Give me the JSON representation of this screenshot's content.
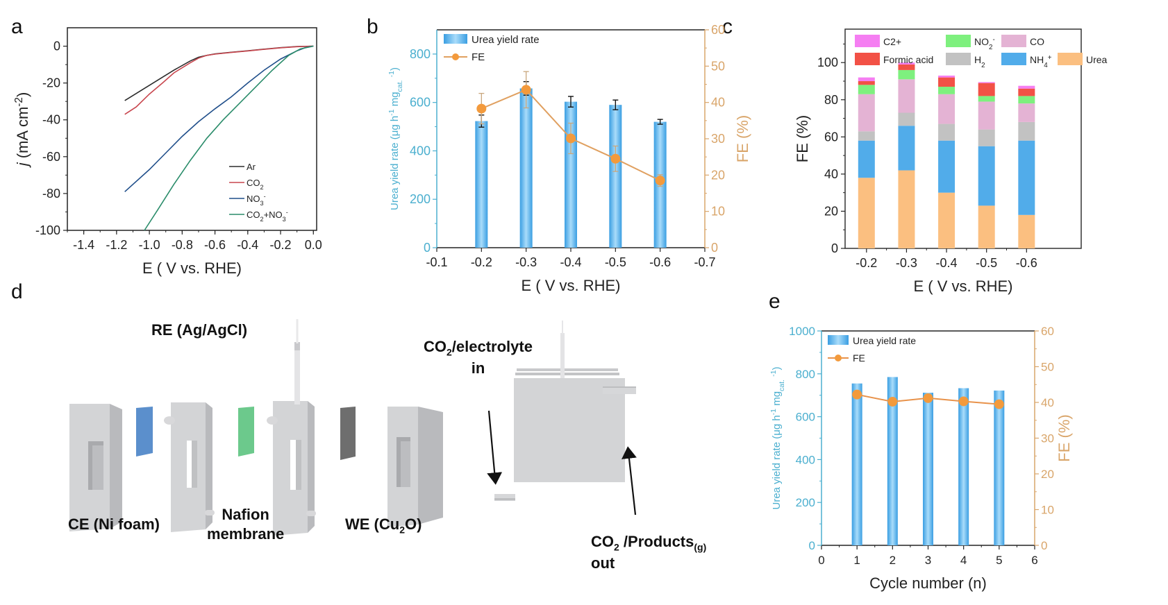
{
  "panels": {
    "a": {
      "letter": "a"
    },
    "b": {
      "letter": "b"
    },
    "c": {
      "letter": "c"
    },
    "d": {
      "letter": "d"
    },
    "e": {
      "letter": "e"
    }
  },
  "colors": {
    "ar": "#2b2b2b",
    "co2": "#c8464e",
    "no3": "#1f4e8a",
    "co2_no3": "#2a8c6a",
    "bar_blue": "#4aa8e6",
    "fe_orange": "#f39a3c",
    "left_axis_teal": "#4bafcf",
    "right_axis_tan": "#d9a56a",
    "c2plus": "#f57ef2",
    "formic": "#f25146",
    "no2": "#7ef07e",
    "h2": "#c2c2c2",
    "co": "#e4b3d4",
    "nh4": "#51acea",
    "urea": "#fbbf80"
  },
  "chart_data": [
    {
      "id": "a",
      "type": "line",
      "title": "",
      "xlabel": "E ( V vs. RHE)",
      "ylabel": "j (mA cm-2)",
      "ylabel_italic": "j",
      "ylabel_rest": " (mA cm",
      "ylabel_sup": "-2",
      "xlim": [
        -1.5,
        0.02
      ],
      "ylim": [
        -100,
        10
      ],
      "xticks": [
        -1.4,
        -1.2,
        -1.0,
        -0.8,
        -0.6,
        -0.4,
        -0.2,
        0.0
      ],
      "xtick_labels": [
        "-1.4",
        "-1.2",
        "-1.0",
        "-0.8",
        "-0.6",
        "-0.4",
        "-0.2",
        "0.0"
      ],
      "yticks": [
        0,
        -20,
        -40,
        -60,
        -80,
        -100
      ],
      "ytick_labels": [
        "0",
        "-20",
        "-40",
        "-60",
        "-80",
        "-100"
      ],
      "legend_position": "bottom-right",
      "series": [
        {
          "name": "Ar",
          "label_main": "Ar",
          "label_sub": "",
          "label_sup": "",
          "label_tail": "",
          "color_key": "ar",
          "x": [
            -1.15,
            -1.05,
            -0.95,
            -0.85,
            -0.75,
            -0.7,
            -0.65,
            -0.6,
            -0.5,
            -0.4,
            -0.3,
            -0.2,
            -0.1,
            0.0
          ],
          "y": [
            -29.5,
            -24,
            -18.5,
            -13,
            -8,
            -6,
            -5,
            -4.2,
            -3.3,
            -2.5,
            -1.6,
            -0.8,
            -0.2,
            0
          ]
        },
        {
          "name": "CO2",
          "label_main": "CO",
          "label_sub": "2",
          "label_sup": "",
          "label_tail": "",
          "color_key": "co2",
          "x": [
            -1.15,
            -1.08,
            -1.0,
            -0.92,
            -0.85,
            -0.75,
            -0.7,
            -0.65,
            -0.6,
            -0.5,
            -0.4,
            -0.3,
            -0.2,
            -0.1,
            0.0
          ],
          "y": [
            -37,
            -33,
            -26,
            -20,
            -14.5,
            -9,
            -6.5,
            -5,
            -4.3,
            -3.4,
            -2.6,
            -1.7,
            -0.9,
            -0.3,
            0
          ]
        },
        {
          "name": "NO3-",
          "label_main": "NO",
          "label_sub": "3",
          "label_sup": "-",
          "label_tail": "",
          "color_key": "no3",
          "x": [
            -1.15,
            -1.0,
            -0.9,
            -0.8,
            -0.7,
            -0.6,
            -0.5,
            -0.4,
            -0.3,
            -0.2,
            -0.1,
            -0.05,
            0.0
          ],
          "y": [
            -79,
            -67,
            -58,
            -49,
            -41,
            -34,
            -27.5,
            -20,
            -13,
            -7,
            -2.5,
            -0.8,
            0
          ]
        },
        {
          "name": "CO2+NO3-",
          "label_main": "CO",
          "label_sub": "2",
          "label_sup": "",
          "label_tail": "+NO",
          "label_tail_sub": "3",
          "label_tail_sup": "-",
          "color_key": "co2_no3",
          "x": [
            -1.03,
            -0.95,
            -0.85,
            -0.75,
            -0.65,
            -0.55,
            -0.45,
            -0.35,
            -0.25,
            -0.15,
            -0.08,
            0.0
          ],
          "y": [
            -100,
            -89,
            -75,
            -62,
            -50,
            -40,
            -31,
            -22,
            -13,
            -5,
            -1.5,
            0
          ]
        }
      ]
    },
    {
      "id": "b",
      "type": "bar",
      "xlabel": "E ( V vs. RHE)",
      "ylabel_left": "Urea yield rate (μg h",
      "ylabel_left_sup1": "-1",
      "ylabel_left_mid": " mg",
      "ylabel_left_sub": "cat.",
      "ylabel_left_sup2": "-1",
      "ylabel_left_end": ")",
      "ylabel_right": "FE (%)",
      "xlim": [
        -0.1,
        -0.7
      ],
      "ylim_left": [
        0,
        900
      ],
      "ylim_right": [
        0,
        60
      ],
      "xticks": [
        -0.1,
        -0.2,
        -0.3,
        -0.4,
        -0.5,
        -0.6,
        -0.7
      ],
      "xtick_labels": [
        "-0.1",
        "-0.2",
        "-0.3",
        "-0.4",
        "-0.5",
        "-0.6",
        "-0.7"
      ],
      "yticks_left": [
        0,
        200,
        400,
        600,
        800
      ],
      "ytick_left_labels": [
        "0",
        "200",
        "400",
        "600",
        "800"
      ],
      "yticks_right": [
        0,
        10,
        20,
        30,
        40,
        50,
        60
      ],
      "ytick_right_labels": [
        "0",
        "10",
        "20",
        "30",
        "40",
        "50",
        "60"
      ],
      "legend_position": "top-left",
      "legend": [
        "Urea yield rate",
        "FE"
      ],
      "categories": [
        -0.2,
        -0.3,
        -0.4,
        -0.5,
        -0.6
      ],
      "series": [
        {
          "name": "Urea yield rate",
          "axis": "left",
          "values": [
            523,
            658,
            603,
            590,
            520
          ],
          "errors": [
            25,
            28,
            22,
            20,
            10
          ]
        },
        {
          "name": "FE",
          "axis": "right",
          "values": [
            38.3,
            43.5,
            30.1,
            24.5,
            18.5
          ],
          "errors": [
            4.2,
            5.0,
            4.2,
            3.5,
            1.6
          ]
        }
      ]
    },
    {
      "id": "c",
      "type": "bar",
      "stacked": true,
      "xlabel": "E ( V vs. RHE)",
      "ylabel": "FE (%)",
      "ylim": [
        0,
        118
      ],
      "yticks": [
        0,
        20,
        40,
        60,
        80,
        100
      ],
      "ytick_labels": [
        "0",
        "20",
        "40",
        "60",
        "80",
        "100"
      ],
      "xtick_labels": [
        "-0.2",
        "-0.3",
        "-0.4",
        "-0.5",
        "-0.6"
      ],
      "categories": [
        "-0.2",
        "-0.3",
        "-0.4",
        "-0.5",
        "-0.6"
      ],
      "legend_position": "top",
      "series": [
        {
          "name": "Urea",
          "label_main": "Urea",
          "label_sub": "",
          "label_sup": "",
          "color_key": "urea",
          "values": [
            38,
            42,
            30,
            23,
            18
          ]
        },
        {
          "name": "NH4+",
          "label_main": "NH",
          "label_sub": "4",
          "label_sup": "+",
          "color_key": "nh4",
          "values": [
            20,
            24,
            28,
            32,
            40
          ]
        },
        {
          "name": "H2",
          "label_main": "H",
          "label_sub": "2",
          "label_sup": "",
          "color_key": "h2",
          "values": [
            5,
            7,
            9,
            9,
            10
          ]
        },
        {
          "name": "CO",
          "label_main": "CO",
          "label_sub": "",
          "label_sup": "",
          "color_key": "co",
          "values": [
            20,
            18,
            16,
            15,
            10
          ]
        },
        {
          "name": "NO2-",
          "label_main": "NO",
          "label_sub": "2",
          "label_sup": "-",
          "color_key": "no2",
          "values": [
            5,
            5,
            4,
            3,
            4
          ]
        },
        {
          "name": "Formic acid",
          "label_main": "Formic acid",
          "label_sub": "",
          "label_sup": "",
          "color_key": "formic",
          "values": [
            2,
            3,
            5,
            7,
            4
          ]
        },
        {
          "name": "C2+",
          "label_main": "C2+",
          "label_sub": "",
          "label_sup": "",
          "color_key": "c2plus",
          "values": [
            2,
            1,
            1,
            0.5,
            1.5
          ]
        }
      ]
    },
    {
      "id": "e",
      "type": "bar",
      "xlabel": "Cycle number (n)",
      "ylabel_left": "Urea yield rate (μg h",
      "ylabel_left_sup1": "-1",
      "ylabel_left_mid": " mg",
      "ylabel_left_sub": "cat.",
      "ylabel_left_sup2": "-1",
      "ylabel_left_end": ")",
      "ylabel_right": "FE (%)",
      "xlim": [
        0,
        6
      ],
      "ylim_left": [
        0,
        1000
      ],
      "ylim_right": [
        0,
        60
      ],
      "xticks": [
        0,
        1,
        2,
        3,
        4,
        5,
        6
      ],
      "xtick_labels": [
        "0",
        "1",
        "2",
        "3",
        "4",
        "5",
        "6"
      ],
      "yticks_left": [
        0,
        200,
        400,
        600,
        800,
        1000
      ],
      "ytick_left_labels": [
        "0",
        "200",
        "400",
        "600",
        "800",
        "1000"
      ],
      "yticks_right": [
        0,
        10,
        20,
        30,
        40,
        50,
        60
      ],
      "ytick_right_labels": [
        "0",
        "10",
        "20",
        "30",
        "40",
        "50",
        "60"
      ],
      "legend_position": "top-left",
      "legend": [
        "Urea yield rate",
        "FE"
      ],
      "categories": [
        1,
        2,
        3,
        4,
        5
      ],
      "series": [
        {
          "name": "Urea yield rate",
          "axis": "left",
          "values": [
            755,
            785,
            712,
            733,
            722
          ]
        },
        {
          "name": "FE",
          "axis": "right",
          "values": [
            42.2,
            40.2,
            41.2,
            40.3,
            39.5
          ]
        }
      ]
    }
  ],
  "diagram": {
    "labels": {
      "re": "RE (Ag/AgCl)",
      "ce": "CE (Ni foam)",
      "nafion_line1": "Nafion",
      "nafion_line2": "membrane",
      "we_main": "WE (Cu",
      "we_sub": "2",
      "we_end": "O)",
      "in_main": "CO",
      "in_sub": "2",
      "in_rest": "/electrolyte",
      "in_line2": "in",
      "out_main": "CO",
      "out_sub": "2",
      "out_rest": " /Products",
      "out_sub2": "(g)",
      "out_line2": "out"
    },
    "colors": {
      "frame": "#d3d4d6",
      "frame_dark": "#b9babd",
      "ni_foam": "#5b8fcc",
      "nafion": "#6cc98c",
      "cu2o": "#6e6e6e"
    }
  }
}
